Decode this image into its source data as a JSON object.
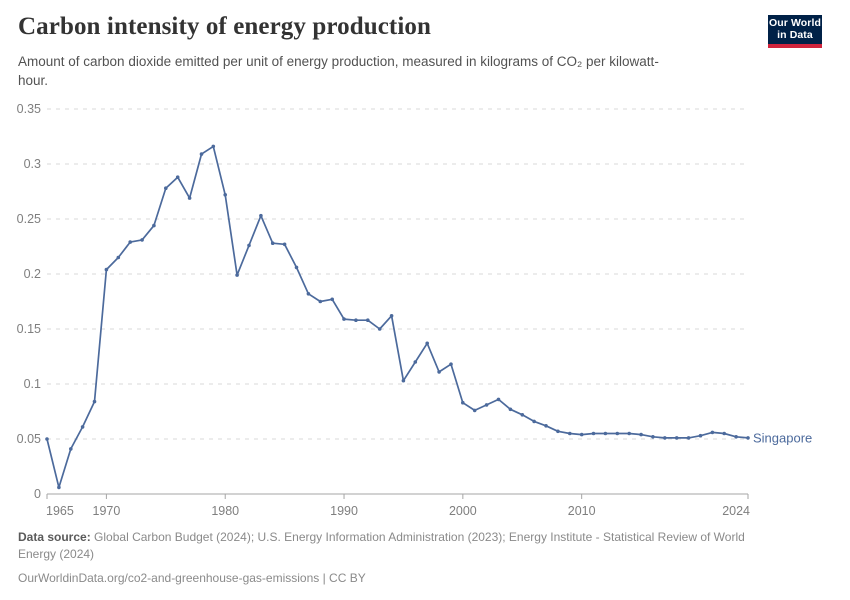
{
  "header": {
    "title": "Carbon intensity of energy production",
    "subtitle": "Amount of carbon dioxide emitted per unit of energy production, measured in kilograms of CO₂ per kilowatt-hour.",
    "logo": {
      "line1": "Our World",
      "line2": "in Data"
    }
  },
  "chart_data": {
    "type": "line",
    "title": "Carbon intensity of energy production",
    "unit": "kilograms of CO2 per kilowatt-hour",
    "xlabel": "",
    "ylabel": "",
    "xlim": [
      1965,
      2024
    ],
    "ylim": [
      0,
      0.35
    ],
    "x_ticks": [
      1965,
      1970,
      1980,
      1990,
      2000,
      2010,
      2024
    ],
    "x_tick_labels": [
      "1965",
      "1970",
      "1980",
      "1990",
      "2000",
      "2010",
      "2024"
    ],
    "y_ticks": [
      0,
      0.05,
      0.1,
      0.15,
      0.2,
      0.25,
      0.3,
      0.35
    ],
    "y_tick_labels": [
      "0",
      "0.05",
      "0.1",
      "0.15",
      "0.2",
      "0.25",
      "0.3",
      "0.35"
    ],
    "grid": "horizontal-dashed",
    "legend": "entity-label-at-line-end",
    "x": [
      1965,
      1966,
      1967,
      1968,
      1969,
      1970,
      1971,
      1972,
      1973,
      1974,
      1975,
      1976,
      1977,
      1978,
      1979,
      1980,
      1981,
      1982,
      1983,
      1984,
      1985,
      1986,
      1987,
      1988,
      1989,
      1990,
      1991,
      1992,
      1993,
      1994,
      1995,
      1996,
      1997,
      1998,
      1999,
      2000,
      2001,
      2002,
      2003,
      2004,
      2005,
      2006,
      2007,
      2008,
      2009,
      2010,
      2011,
      2012,
      2013,
      2014,
      2015,
      2016,
      2017,
      2018,
      2019,
      2020,
      2021,
      2022,
      2023,
      2024
    ],
    "series": [
      {
        "name": "Singapore",
        "color": "#4c6a9c",
        "values": [
          0.05,
          0.006,
          0.041,
          0.061,
          0.084,
          0.204,
          0.215,
          0.229,
          0.231,
          0.244,
          0.278,
          0.288,
          0.269,
          0.309,
          0.316,
          0.272,
          0.199,
          0.226,
          0.253,
          0.228,
          0.227,
          0.206,
          0.182,
          0.175,
          0.177,
          0.159,
          0.158,
          0.158,
          0.15,
          0.162,
          0.103,
          0.12,
          0.137,
          0.111,
          0.118,
          0.083,
          0.076,
          0.081,
          0.086,
          0.077,
          0.072,
          0.066,
          0.062,
          0.057,
          0.055,
          0.054,
          0.055,
          0.055,
          0.055,
          0.055,
          0.054,
          0.052,
          0.051,
          0.051,
          0.051,
          0.053,
          0.056,
          0.055,
          0.052,
          0.051
        ]
      }
    ]
  },
  "footer": {
    "data_source_label": "Data source:",
    "data_source_line1": "Global Carbon Budget (2024); U.S. Energy Information Administration (2023); Energy Institute - Statistical Review of World",
    "data_source_line2": "Energy (2024)",
    "url_line": "OurWorldinData.org/co2-and-greenhouse-gas-emissions | CC BY"
  },
  "colors": {
    "line": "#4c6a9c",
    "logo_bg": "#002147",
    "logo_stripe": "#d0243c",
    "grid": "#dadada",
    "axis": "#a5a5a5",
    "tick_label": "#7f7f7f",
    "title": "#333333",
    "subtitle": "#525252",
    "footer": "#8a8a8a"
  }
}
